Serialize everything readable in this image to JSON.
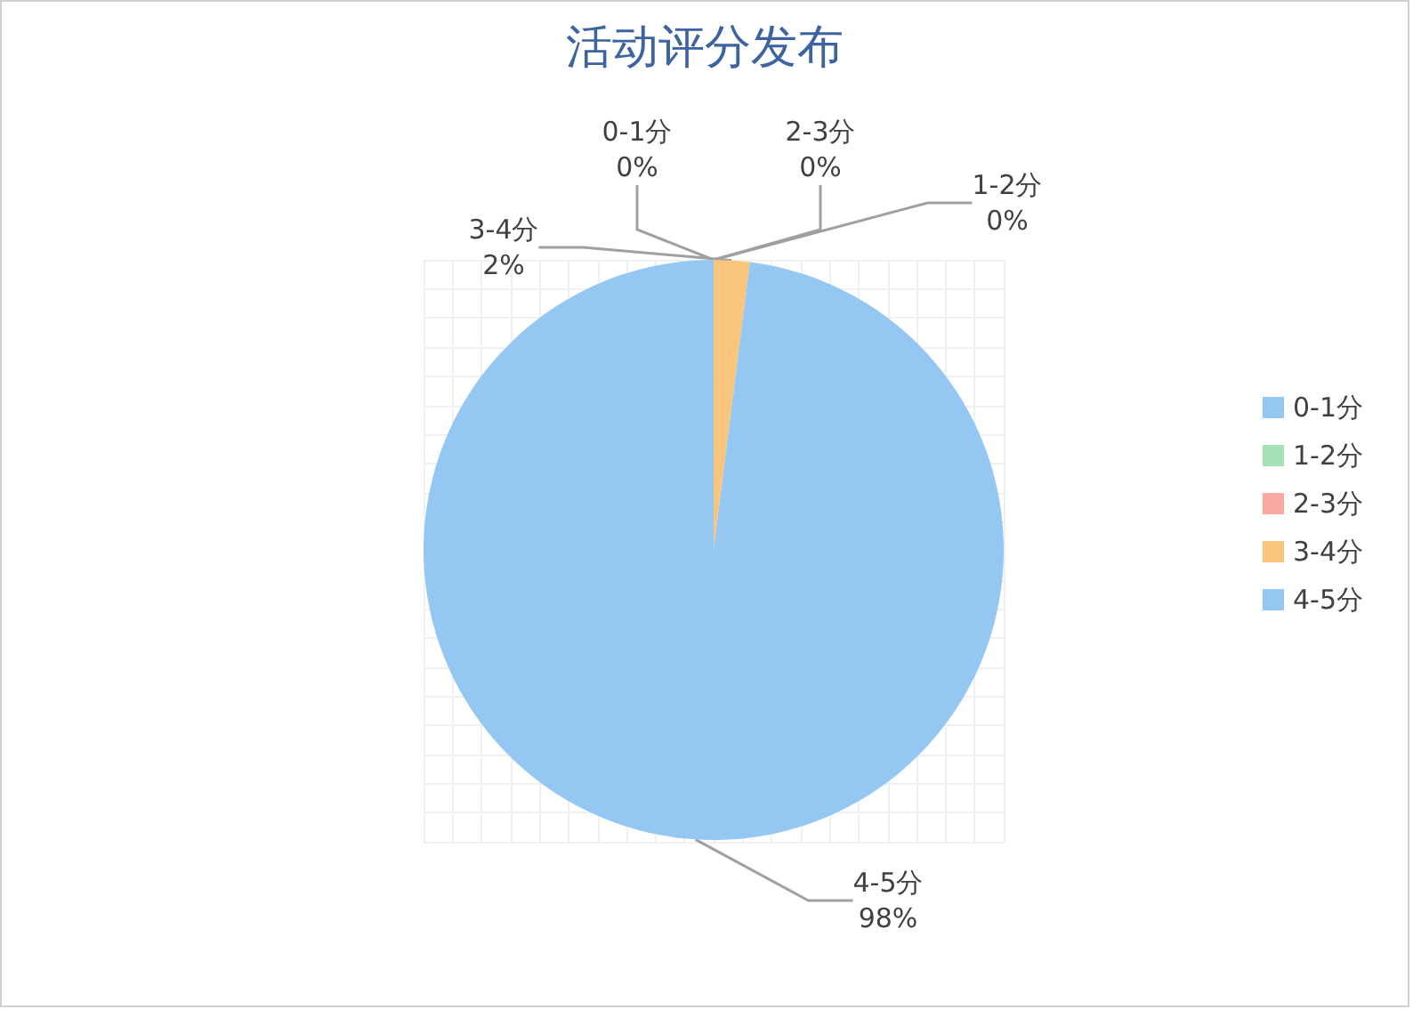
{
  "chart_data": {
    "type": "pie",
    "title": "活动评分发布",
    "categories": [
      "0-1分",
      "1-2分",
      "2-3分",
      "3-4分",
      "4-5分"
    ],
    "values": [
      0,
      0,
      0,
      2,
      98
    ],
    "value_labels": [
      "0%",
      "0%",
      "0%",
      "2%",
      "98%"
    ],
    "colors": [
      "#94c8f2",
      "#a3e3b6",
      "#f9a99f",
      "#f9c57d",
      "#94c8f2"
    ],
    "legend": "right",
    "grid": true
  }
}
